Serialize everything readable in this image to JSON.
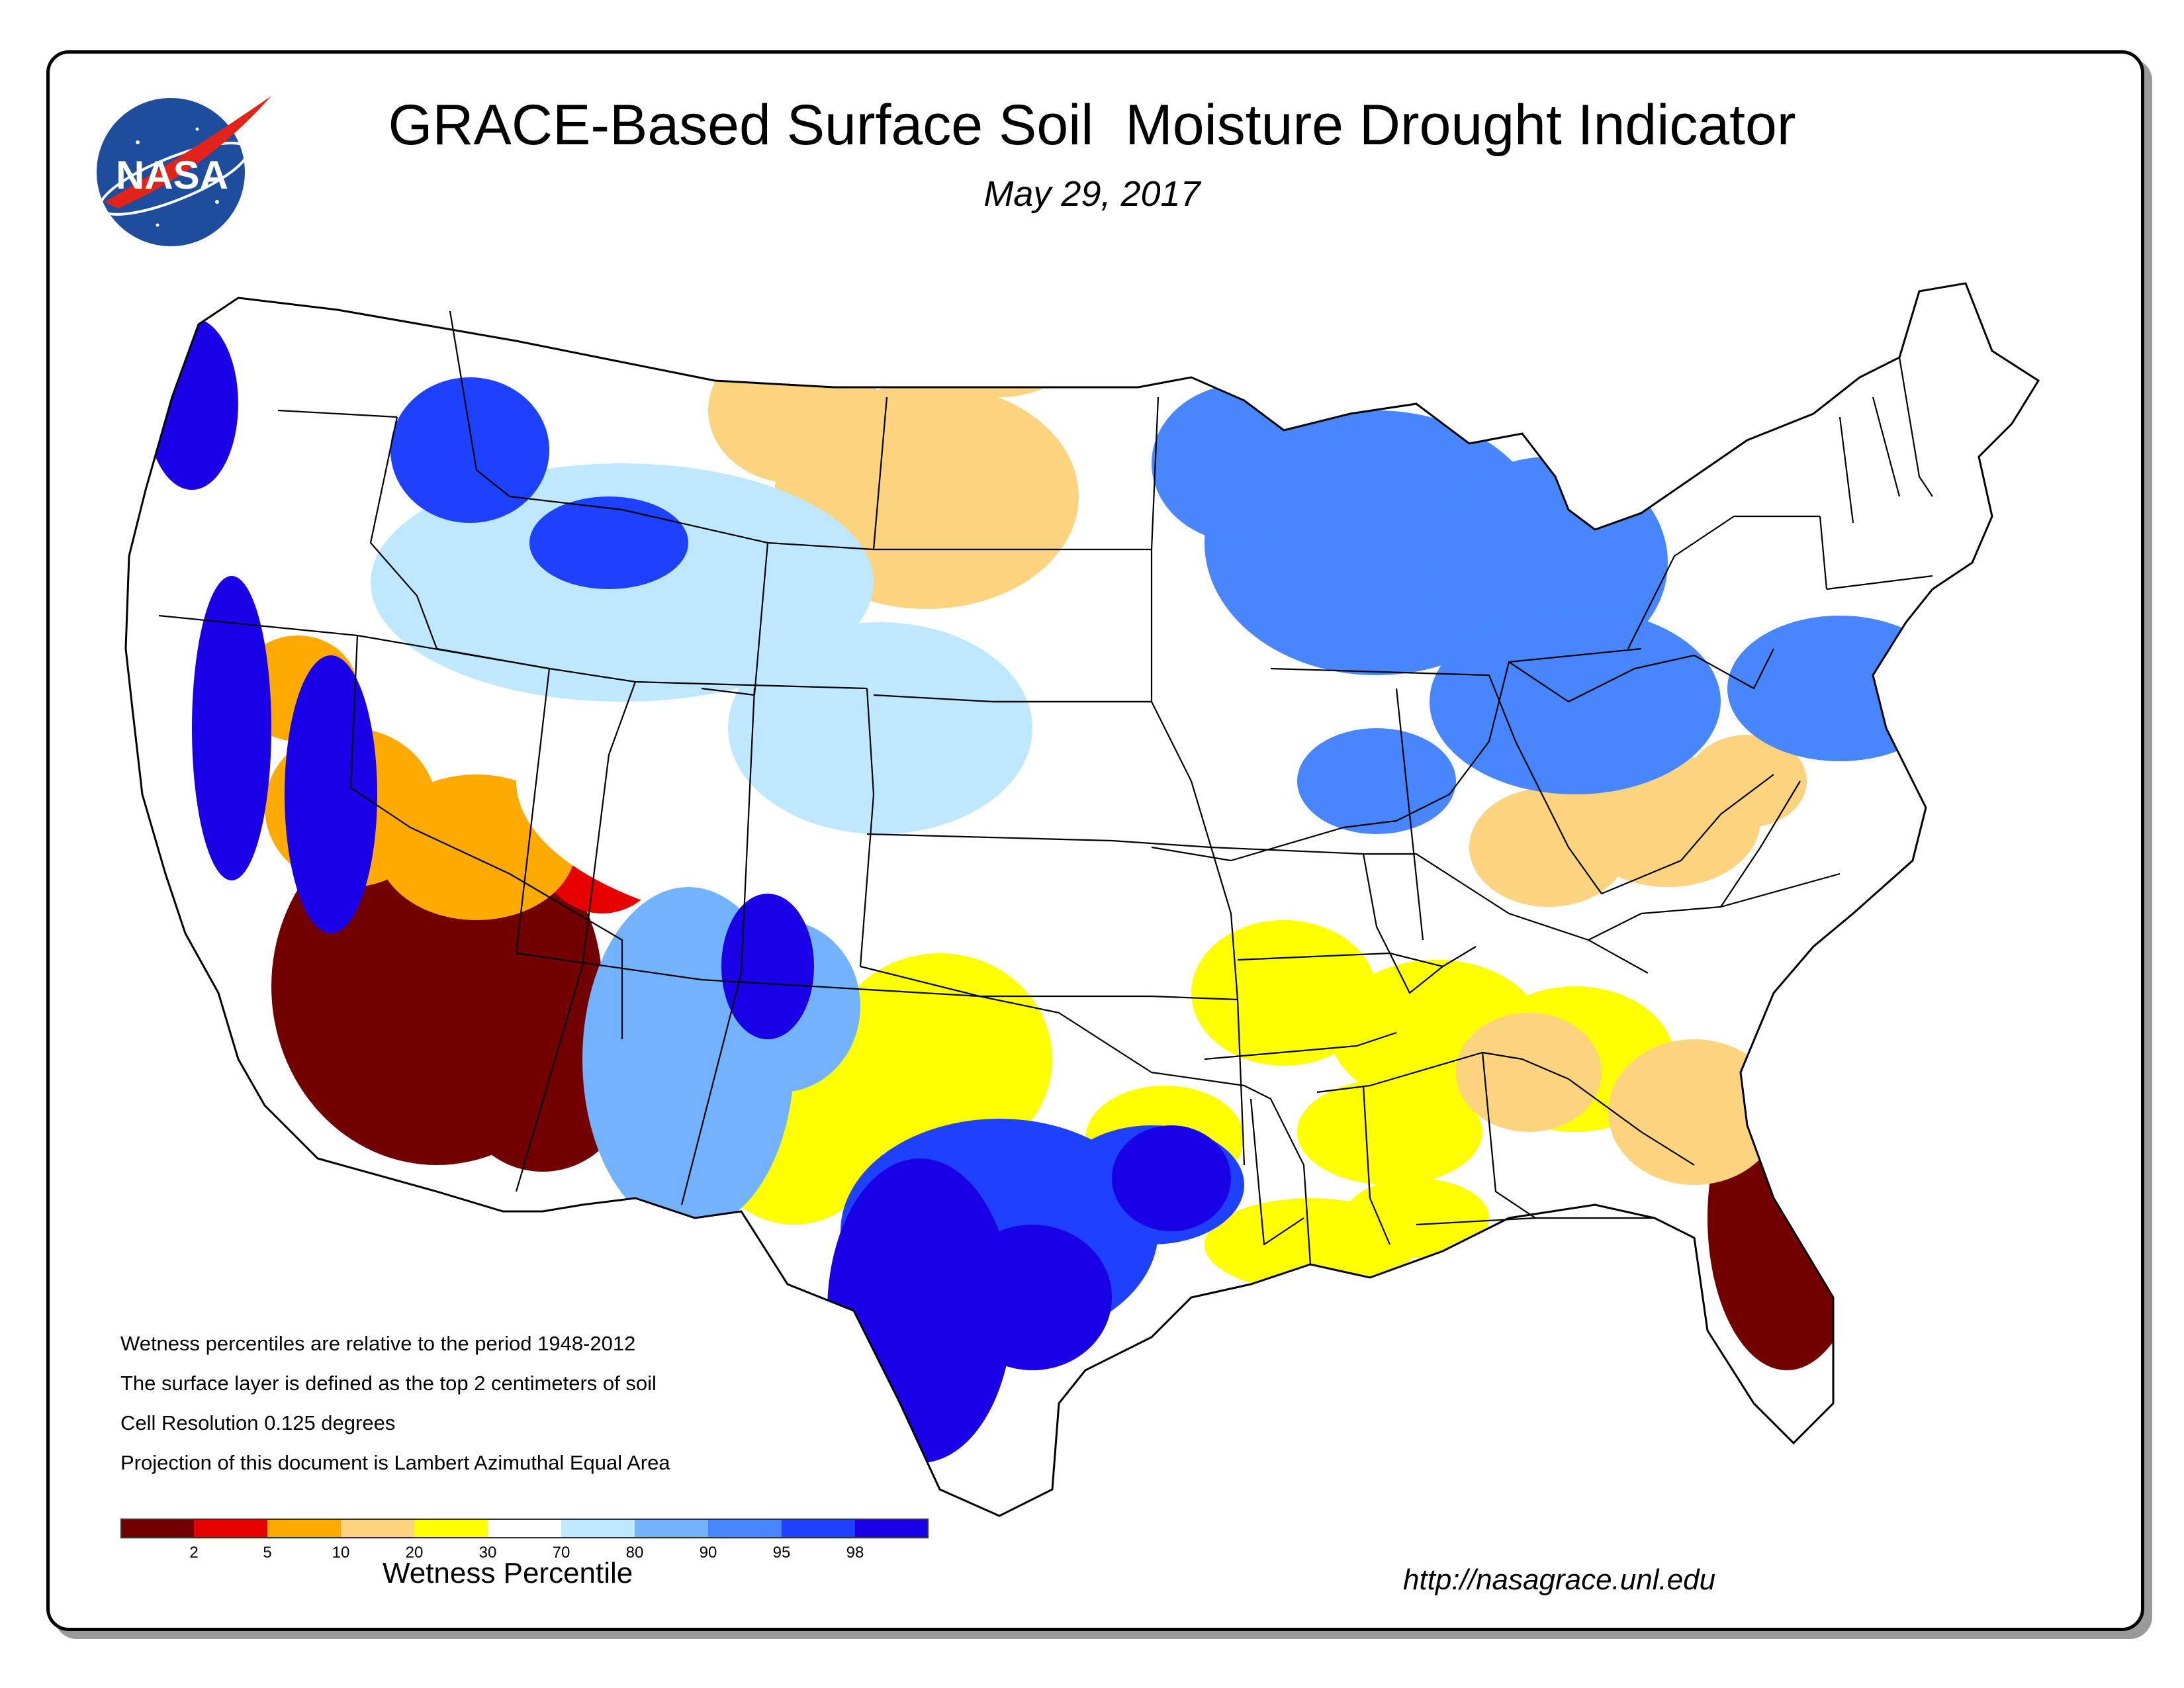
{
  "header": {
    "title": "GRACE-Based Surface Soil  Moisture Drought Indicator",
    "date": "May 29, 2017",
    "logo_text": "NASA"
  },
  "notes": [
    "Wetness percentiles are relative to the period 1948-2012",
    "The surface layer is defined as the top 2 centimeters of soil",
    "Cell Resolution 0.125 degrees",
    "Projection of this document is Lambert Azimuthal Equal Area"
  ],
  "legend": {
    "title": "Wetness Percentile",
    "colors": [
      "#730000",
      "#e60000",
      "#ffaa00",
      "#fcd37f",
      "#ffff00",
      "#ffffff",
      "#bee8ff",
      "#73b2ff",
      "#4786ff",
      "#1e40ff",
      "#1a00e6"
    ],
    "tick_labels": [
      "2",
      "5",
      "10",
      "20",
      "30",
      "70",
      "80",
      "90",
      "95",
      "98"
    ]
  },
  "footer": {
    "url": "http://nasagrace.unl.edu"
  },
  "map": {
    "region": "Contiguous United States",
    "regions": [
      {
        "area": "southern-arizona",
        "class": 0
      },
      {
        "area": "central-florida",
        "class": 0
      },
      {
        "area": "central-utah",
        "class": 1
      },
      {
        "area": "western-nevada",
        "class": 2
      },
      {
        "area": "north-dakota-south-dakota",
        "class": 3
      },
      {
        "area": "western-texas-oklahoma",
        "class": 4
      },
      {
        "area": "arkansas-tennessee-alabama",
        "class": 4
      },
      {
        "area": "southeast-georgia",
        "class": 3
      },
      {
        "area": "kentucky",
        "class": 3
      },
      {
        "area": "louisiana-coast",
        "class": 4
      },
      {
        "area": "kansas-nebraska",
        "class": 5
      },
      {
        "area": "wyoming-colorado",
        "class": 6
      },
      {
        "area": "new-mexico",
        "class": 7
      },
      {
        "area": "minnesota-wisconsin",
        "class": 8
      },
      {
        "area": "indiana-ohio",
        "class": 8
      },
      {
        "area": "central-texas",
        "class": 9
      },
      {
        "area": "northern-idaho",
        "class": 9
      },
      {
        "area": "western-oregon-california",
        "class": 10
      },
      {
        "area": "southern-texas",
        "class": 10
      }
    ]
  }
}
